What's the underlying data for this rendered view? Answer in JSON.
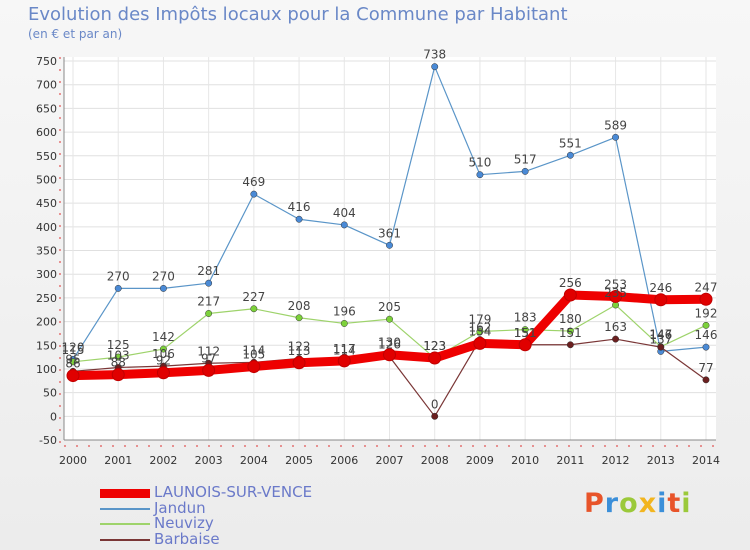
{
  "title": "Evolution des Impôts locaux pour la Commune par Habitant",
  "subtitle": "(en € et par an)",
  "brand": {
    "text": "Proxiti",
    "colors": [
      "#e8542a",
      "#3b8fd9",
      "#9bc93a",
      "#f2b51f",
      "#3b8fd9",
      "#e8542a",
      "#9bc93a"
    ]
  },
  "chart_data": {
    "type": "line",
    "title": "Evolution des Impôts locaux pour la Commune par Habitant",
    "subtitle": "(en € et par an)",
    "xlabel": "",
    "ylabel": "",
    "ylim": [
      -50,
      750
    ],
    "yticks": [
      -50,
      0,
      50,
      100,
      150,
      200,
      250,
      300,
      350,
      400,
      450,
      500,
      550,
      600,
      650,
      700,
      750
    ],
    "grid": true,
    "legend_position": "bottom-left",
    "x": [
      "2000",
      "2001",
      "2002",
      "2003",
      "2004",
      "2005",
      "2006",
      "2007",
      "2008",
      "2009",
      "2010",
      "2011",
      "2012",
      "2013",
      "2014"
    ],
    "series": [
      {
        "name": "Jandun",
        "color": "#5a95c8",
        "marker": "#4a8ad6",
        "width": 1.2,
        "values": [
          120,
          270,
          270,
          281,
          469,
          416,
          404,
          361,
          738,
          510,
          517,
          551,
          589,
          137,
          146
        ],
        "labels": [
          "120",
          "270",
          "270",
          "281",
          "469",
          "416",
          "404",
          "361",
          "738",
          "510",
          "517",
          "551",
          "589",
          "137",
          "146"
        ]
      },
      {
        "name": "Neuvizy",
        "color": "#9ed36b",
        "marker": "#7cd13a",
        "width": 1.2,
        "values": [
          115,
          125,
          142,
          217,
          227,
          208,
          196,
          205,
          123,
          179,
          183,
          180,
          235,
          147,
          192
        ],
        "labels": [
          "115",
          "125",
          "142",
          "217",
          "227",
          "208",
          "196",
          "205",
          "123",
          "179",
          "183",
          "180",
          "235",
          "147",
          "192"
        ]
      },
      {
        "name": "Barbaise",
        "color": "#7a3636",
        "marker": "#6b1f1f",
        "width": 1.2,
        "values": [
          95,
          103,
          106,
          112,
          114,
          122,
          114,
          126,
          0,
          162,
          151,
          151,
          163,
          146,
          77
        ],
        "labels": [
          "95",
          "103",
          "106",
          "112",
          "114",
          "122",
          "114",
          "126",
          "0",
          "162",
          "151",
          "151",
          "163",
          "146",
          "77"
        ]
      },
      {
        "name": "LAUNOIS-SUR-VENCE",
        "color": "#ee0000",
        "marker": "#e00000",
        "width": 9,
        "values": [
          86,
          88,
          92,
          97,
          105,
          113,
          117,
          130,
          123,
          154,
          151,
          256,
          253,
          246,
          247
        ],
        "labels": [
          "86",
          "88",
          "92",
          "97",
          "105",
          "113",
          "117",
          "130",
          "123",
          "154",
          "151",
          "256",
          "253",
          "246",
          "247"
        ]
      }
    ]
  },
  "legend": [
    {
      "label": "LAUNOIS-SUR-VENCE",
      "color": "#ee0000",
      "width": 9
    },
    {
      "label": "Jandun",
      "color": "#5a95c8",
      "width": 2
    },
    {
      "label": "Neuvizy",
      "color": "#9ed36b",
      "width": 2
    },
    {
      "label": "Barbaise",
      "color": "#7a3636",
      "width": 2
    }
  ]
}
